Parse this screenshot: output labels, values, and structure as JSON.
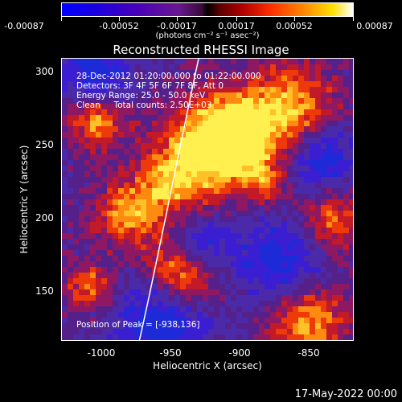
{
  "colorbar": {
    "ticks": [
      "-0.00087",
      "-0.00052",
      "-0.00017",
      "0.00017",
      "0.00052",
      "0.00087"
    ],
    "units": "(photons cm⁻² s⁻¹ asec⁻²)"
  },
  "title": "Reconstructed RHESSI Image",
  "annotations": {
    "time": "28-Dec-2012 01:20:00.000 to 01:22:00.000",
    "detectors": "Detectors: 3F 4F 5F 6F 7F 8F, Att 0",
    "energy": "Energy Range: 25.0 - 50.0 keV",
    "method": "Clean     Total counts: 2.50E+03",
    "peak": "Position of Peak = [-938,136]"
  },
  "axes": {
    "xlabel": "Heliocentric X (arcsec)",
    "ylabel": "Heliocentric Y (arcsec)",
    "xticks": [
      "-1000",
      "-950",
      "-900",
      "-850"
    ],
    "yticks": [
      "300",
      "250",
      "200",
      "150"
    ]
  },
  "footer": {
    "date": "17-May-2022 00:00"
  }
}
